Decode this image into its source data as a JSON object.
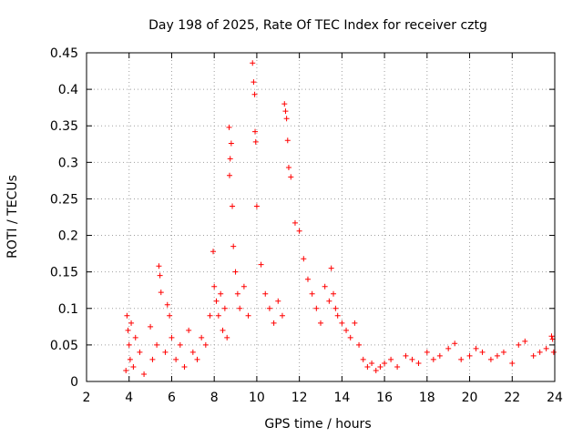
{
  "chart_data": {
    "type": "scatter",
    "title": "Day 198 of 2025, Rate Of TEC Index for receiver cztg",
    "xlabel": "GPS time / hours",
    "ylabel": "ROTI / TECUs",
    "xlim": [
      2,
      24
    ],
    "ylim": [
      0,
      0.45
    ],
    "xticks": [
      2,
      4,
      6,
      8,
      10,
      12,
      14,
      16,
      18,
      20,
      22,
      24
    ],
    "yticks": [
      0,
      0.05,
      0.1,
      0.15,
      0.2,
      0.25,
      0.3,
      0.35,
      0.4,
      0.45
    ],
    "ytick_labels": [
      "0",
      "0.05",
      "0.1",
      "0.15",
      "0.2",
      "0.25",
      "0.3",
      "0.35",
      "0.4",
      "0.45"
    ],
    "grid": true,
    "marker": "plus",
    "color": "#ff0000",
    "series": [
      {
        "name": "ROTI",
        "x": [
          3.85,
          3.9,
          3.95,
          4.0,
          4.05,
          4.1,
          4.2,
          4.3,
          4.5,
          4.7,
          5.0,
          5.1,
          5.3,
          5.4,
          5.45,
          5.5,
          5.7,
          5.8,
          5.9,
          6.0,
          6.2,
          6.4,
          6.6,
          6.8,
          7.0,
          7.2,
          7.4,
          7.6,
          7.8,
          7.95,
          8.0,
          8.1,
          8.2,
          8.3,
          8.4,
          8.5,
          8.6,
          8.7,
          8.72,
          8.75,
          8.8,
          8.85,
          8.9,
          9.0,
          9.1,
          9.2,
          9.4,
          9.6,
          9.8,
          9.85,
          9.9,
          9.92,
          9.95,
          10.0,
          10.2,
          10.4,
          10.6,
          10.8,
          11.0,
          11.2,
          11.3,
          11.35,
          11.4,
          11.45,
          11.5,
          11.6,
          11.8,
          12.0,
          12.2,
          12.4,
          12.6,
          12.8,
          13.0,
          13.2,
          13.4,
          13.5,
          13.6,
          13.7,
          13.8,
          14.0,
          14.2,
          14.4,
          14.6,
          14.8,
          15.0,
          15.2,
          15.4,
          15.6,
          15.8,
          16.0,
          16.3,
          16.6,
          17.0,
          17.3,
          17.6,
          18.0,
          18.3,
          18.6,
          19.0,
          19.3,
          19.6,
          20.0,
          20.3,
          20.6,
          21.0,
          21.3,
          21.6,
          22.0,
          22.3,
          22.6,
          23.0,
          23.3,
          23.6,
          23.85,
          23.9,
          23.95
        ],
        "y": [
          0.015,
          0.09,
          0.07,
          0.05,
          0.03,
          0.08,
          0.02,
          0.06,
          0.04,
          0.01,
          0.075,
          0.03,
          0.05,
          0.158,
          0.145,
          0.122,
          0.04,
          0.105,
          0.09,
          0.06,
          0.03,
          0.05,
          0.02,
          0.07,
          0.04,
          0.03,
          0.06,
          0.05,
          0.09,
          0.178,
          0.13,
          0.11,
          0.09,
          0.12,
          0.07,
          0.1,
          0.06,
          0.348,
          0.282,
          0.305,
          0.326,
          0.24,
          0.185,
          0.15,
          0.12,
          0.1,
          0.13,
          0.09,
          0.436,
          0.41,
          0.393,
          0.342,
          0.328,
          0.24,
          0.16,
          0.12,
          0.1,
          0.08,
          0.11,
          0.09,
          0.38,
          0.37,
          0.36,
          0.33,
          0.293,
          0.28,
          0.217,
          0.206,
          0.168,
          0.14,
          0.12,
          0.1,
          0.08,
          0.13,
          0.11,
          0.155,
          0.12,
          0.1,
          0.09,
          0.08,
          0.07,
          0.06,
          0.08,
          0.05,
          0.03,
          0.02,
          0.025,
          0.015,
          0.02,
          0.025,
          0.03,
          0.02,
          0.035,
          0.03,
          0.025,
          0.04,
          0.03,
          0.035,
          0.045,
          0.052,
          0.03,
          0.035,
          0.045,
          0.04,
          0.03,
          0.035,
          0.04,
          0.025,
          0.05,
          0.055,
          0.035,
          0.04,
          0.045,
          0.062,
          0.058,
          0.04
        ]
      }
    ]
  }
}
